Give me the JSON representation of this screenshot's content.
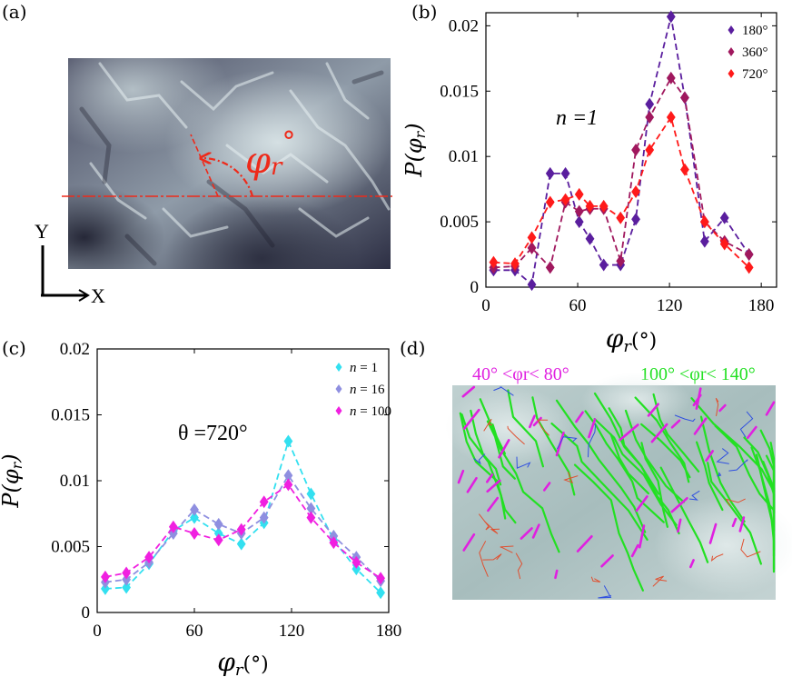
{
  "panels": {
    "a": {
      "label": "(a)",
      "phi_symbol": "φ",
      "phi_sub": "r",
      "phi_deg": "°",
      "axis_y": "Y",
      "axis_x": "X"
    },
    "b": {
      "label": "(b)",
      "annotation": "n =1"
    },
    "c": {
      "label": "(c)",
      "annotation": "θ =720°"
    },
    "d": {
      "label": "(d)",
      "range1": "40° <φr< 80°",
      "range2": "100° <φr< 140°",
      "colors": {
        "range1": "#e020e0",
        "range2": "#22e022",
        "other_red": "#e05030",
        "other_blue": "#3050e0"
      }
    }
  },
  "chart_data": [
    {
      "panel": "b",
      "type": "line",
      "ylabel": "P(φr)",
      "xlabel": "φr(°)",
      "xlim": [
        0,
        190
      ],
      "ylim": [
        0,
        0.021
      ],
      "xticks": [
        0,
        60,
        120,
        180
      ],
      "yticks": [
        0,
        0.005,
        0.01,
        0.015,
        0.02
      ],
      "ytick_labels": [
        "0",
        "0.005",
        "0.01",
        "0.015",
        "0.02"
      ],
      "legend_position": "top-right",
      "series": [
        {
          "name": "180°",
          "color": "#5a1e9e",
          "x": [
            5,
            19,
            30,
            42,
            52,
            61,
            68,
            77,
            88,
            98,
            107,
            121,
            130,
            143,
            156,
            172
          ],
          "y": [
            0.0013,
            0.0013,
            0.0002,
            0.0087,
            0.0087,
            0.005,
            0.0037,
            0.0017,
            0.0017,
            0.0052,
            0.014,
            0.0207,
            0.0145,
            0.0035,
            0.0053,
            0.0025
          ]
        },
        {
          "name": "360°",
          "color": "#a0185e",
          "x": [
            5,
            19,
            30,
            42,
            52,
            61,
            68,
            77,
            88,
            98,
            107,
            121,
            130,
            143,
            156,
            172
          ],
          "y": [
            0.0015,
            0.0016,
            0.003,
            0.0015,
            0.0065,
            0.0058,
            0.006,
            0.006,
            0.002,
            0.0105,
            0.013,
            0.016,
            0.0145,
            0.005,
            0.0035,
            0.0025
          ]
        },
        {
          "name": "720°",
          "color": "#ff1a1a",
          "x": [
            5,
            19,
            30,
            42,
            52,
            61,
            68,
            77,
            88,
            98,
            107,
            121,
            130,
            143,
            156,
            172
          ],
          "y": [
            0.0019,
            0.0018,
            0.0038,
            0.0065,
            0.0067,
            0.0071,
            0.0062,
            0.0062,
            0.0053,
            0.0073,
            0.0105,
            0.013,
            0.009,
            0.005,
            0.0033,
            0.0015
          ]
        }
      ]
    },
    {
      "panel": "c",
      "type": "line",
      "ylabel": "P(φr)",
      "xlabel": "φr(°)",
      "xlim": [
        0,
        180
      ],
      "ylim": [
        0,
        0.02
      ],
      "xticks": [
        0,
        60,
        120,
        180
      ],
      "yticks": [
        0,
        0.005,
        0.01,
        0.015,
        0.02
      ],
      "ytick_labels": [
        "0",
        "0.005",
        "0.01",
        "0.015",
        "0.02"
      ],
      "legend_position": "top-right",
      "series": [
        {
          "name": "n = 1",
          "color": "#33e0f0",
          "x": [
            5,
            18,
            32,
            47,
            60,
            75,
            89,
            103,
            118,
            132,
            146,
            160,
            175
          ],
          "y": [
            0.0018,
            0.0019,
            0.0037,
            0.0062,
            0.0072,
            0.006,
            0.0052,
            0.0068,
            0.013,
            0.009,
            0.0055,
            0.0033,
            0.0015
          ]
        },
        {
          "name": "n = 16",
          "color": "#8f8fe0",
          "x": [
            5,
            18,
            32,
            47,
            60,
            75,
            89,
            103,
            118,
            132,
            146,
            160,
            175
          ],
          "y": [
            0.0023,
            0.0025,
            0.0038,
            0.006,
            0.0078,
            0.0067,
            0.006,
            0.0072,
            0.0104,
            0.0079,
            0.0058,
            0.0042,
            0.0024
          ]
        },
        {
          "name": "n = 100",
          "color": "#f020e0",
          "x": [
            5,
            18,
            32,
            47,
            60,
            75,
            89,
            103,
            118,
            132,
            146,
            160,
            175
          ],
          "y": [
            0.0027,
            0.003,
            0.0042,
            0.0065,
            0.006,
            0.0055,
            0.0063,
            0.0084,
            0.0097,
            0.0072,
            0.0053,
            0.0038,
            0.0026
          ]
        }
      ]
    }
  ]
}
